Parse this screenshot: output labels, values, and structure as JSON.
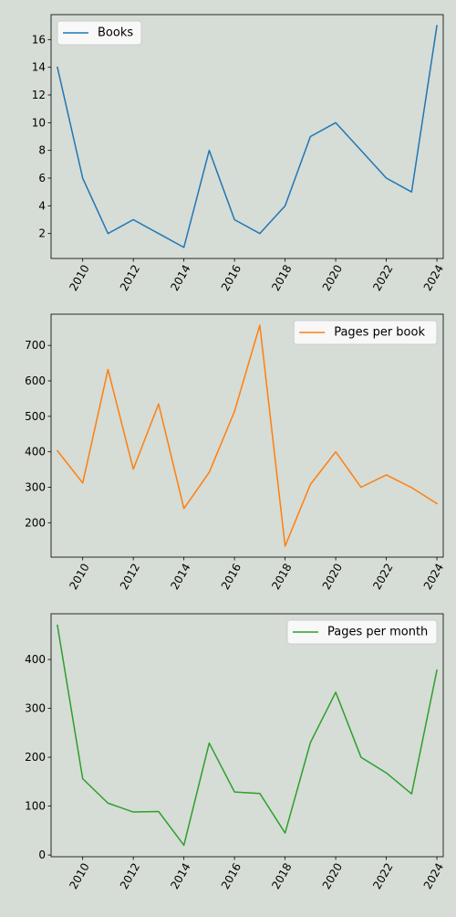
{
  "colors": {
    "background": "#d6dcd6",
    "axes_face": "#d6dcd6",
    "axis": "#000000",
    "legend_bg": "#ffffff",
    "legend_border": "#cccccc"
  },
  "chart_data": [
    {
      "type": "line",
      "x": [
        2009,
        2010,
        2011,
        2012,
        2013,
        2014,
        2015,
        2016,
        2017,
        2018,
        2019,
        2020,
        2021,
        2022,
        2023,
        2024
      ],
      "series": [
        {
          "name": "Books",
          "color": "#1f77b4",
          "values": [
            14,
            6,
            2,
            3,
            2,
            1,
            8,
            3,
            2,
            4,
            9,
            10,
            8,
            6,
            5,
            17
          ]
        }
      ],
      "xticks": [
        2010,
        2012,
        2014,
        2016,
        2018,
        2020,
        2022,
        2024
      ],
      "xtick_labels": [
        "2010",
        "2012",
        "2014",
        "2016",
        "2018",
        "2020",
        "2022",
        "2024"
      ],
      "yticks": [
        2,
        4,
        6,
        8,
        10,
        12,
        14,
        16
      ],
      "ytick_labels": [
        "2",
        "4",
        "6",
        "8",
        "10",
        "12",
        "14",
        "16"
      ],
      "xlim": [
        2008.75,
        2024.25
      ],
      "ylim": [
        0.2,
        17.8
      ],
      "legend_position": "top-left",
      "grid": false,
      "title": "",
      "xlabel": "",
      "ylabel": ""
    },
    {
      "type": "line",
      "x": [
        2009,
        2010,
        2011,
        2012,
        2013,
        2014,
        2015,
        2016,
        2017,
        2018,
        2019,
        2020,
        2021,
        2022,
        2023,
        2024
      ],
      "series": [
        {
          "name": "Pages per book",
          "color": "#ff7f0e",
          "values": [
            403,
            312,
            632,
            351,
            535,
            240,
            342,
            514,
            757,
            134,
            308,
            400,
            300,
            335,
            299,
            254
          ]
        }
      ],
      "xticks": [
        2010,
        2012,
        2014,
        2016,
        2018,
        2020,
        2022,
        2024
      ],
      "xtick_labels": [
        "2010",
        "2012",
        "2014",
        "2016",
        "2018",
        "2020",
        "2022",
        "2024"
      ],
      "yticks": [
        200,
        300,
        400,
        500,
        600,
        700
      ],
      "ytick_labels": [
        "200",
        "300",
        "400",
        "500",
        "600",
        "700"
      ],
      "xlim": [
        2008.75,
        2024.25
      ],
      "ylim": [
        103,
        788
      ],
      "legend_position": "top-right",
      "grid": false,
      "title": "",
      "xlabel": "",
      "ylabel": ""
    },
    {
      "type": "line",
      "x": [
        2009,
        2010,
        2011,
        2012,
        2013,
        2014,
        2015,
        2016,
        2017,
        2018,
        2019,
        2020,
        2021,
        2022,
        2023,
        2024
      ],
      "series": [
        {
          "name": "Pages per month",
          "color": "#2ca02c",
          "values": [
            470,
            156,
            106,
            88,
            89,
            20,
            229,
            129,
            126,
            45,
            230,
            333,
            200,
            168,
            125,
            378
          ]
        }
      ],
      "xticks": [
        2010,
        2012,
        2014,
        2016,
        2018,
        2020,
        2022,
        2024
      ],
      "xtick_labels": [
        "2010",
        "2012",
        "2014",
        "2016",
        "2018",
        "2020",
        "2022",
        "2024"
      ],
      "yticks": [
        0,
        100,
        200,
        300,
        400
      ],
      "ytick_labels": [
        "0",
        "100",
        "200",
        "300",
        "400"
      ],
      "xlim": [
        2008.75,
        2024.25
      ],
      "ylim": [
        -3.5,
        493.5
      ],
      "legend_position": "top-right",
      "grid": false,
      "title": "",
      "xlabel": "",
      "ylabel": ""
    }
  ]
}
